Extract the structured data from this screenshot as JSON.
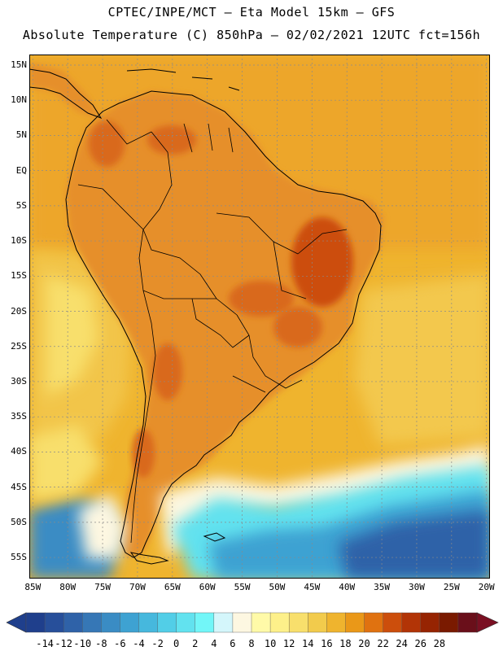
{
  "header": {
    "line1": "CPTEC/INPE/MCT –  Eta Model 15km – GFS",
    "line2": "Absolute Temperature (C) 850hPa – 02/02/2021 12UTC fct=156h"
  },
  "map": {
    "lat_labels": [
      "15N",
      "10N",
      "5N",
      "EQ",
      "5S",
      "10S",
      "15S",
      "20S",
      "25S",
      "30S",
      "35S",
      "40S",
      "45S",
      "50S",
      "55S"
    ],
    "lon_labels": [
      "85W",
      "80W",
      "75W",
      "70W",
      "65W",
      "60W",
      "55W",
      "50W",
      "45W",
      "40W",
      "35W",
      "30W",
      "25W",
      "20W"
    ]
  },
  "colorbar": {
    "labels": [
      "-14",
      "-12",
      "-10",
      "-8",
      "-6",
      "-4",
      "-2",
      "0",
      "2",
      "4",
      "6",
      "8",
      "10",
      "12",
      "14",
      "16",
      "18",
      "20",
      "22",
      "24",
      "26",
      "28"
    ],
    "colors": [
      "#1f3f8c",
      "#274f9a",
      "#2f62a8",
      "#3677b6",
      "#3a8cc4",
      "#3ea2d2",
      "#46b8dd",
      "#52cee7",
      "#62e2ef",
      "#72f6f8",
      "#d4f6fb",
      "#fdf7e1",
      "#fffaa8",
      "#fdf08a",
      "#f8df6c",
      "#f2cb4c",
      "#efb42e",
      "#ea9818",
      "#e07210",
      "#cc4e0c",
      "#b23406",
      "#962402",
      "#7a1a00",
      "#6a0f1a"
    ],
    "low_color": "#1f3f8c",
    "high_color": "#7a0f22"
  },
  "palette": {
    "ocean_far": "#f1b43a",
    "land_hot": "#e68f2c",
    "land_very_hot": "#d9691a",
    "coastline": "#000000",
    "grid": "#8a8a8a",
    "frame": "#000000",
    "cold_water": "#3f86c8",
    "very_cold_water": "#2f62a8"
  }
}
